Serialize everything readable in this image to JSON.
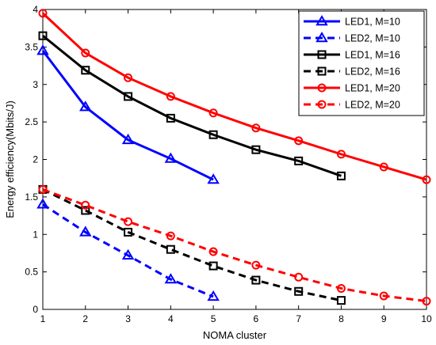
{
  "chart_data": {
    "type": "line",
    "xlabel": "NOMA cluster",
    "ylabel": "Energy efficiency(Mbits/J)",
    "xlim": [
      1,
      10
    ],
    "ylim": [
      0,
      4
    ],
    "xticks": [
      1,
      2,
      3,
      4,
      5,
      6,
      7,
      8,
      9,
      10
    ],
    "yticks": [
      0,
      0.5,
      1,
      1.5,
      2,
      2.5,
      3,
      3.5,
      4
    ],
    "ytick_labels": [
      "0",
      "0.5",
      "1",
      "1.5",
      "2",
      "2.5",
      "3",
      "3.5",
      "4"
    ],
    "grid": false,
    "legend_position": "top-right",
    "series": [
      {
        "name": "LED1, M=10",
        "color": "#0000ff",
        "style": "solid",
        "marker": "triangle",
        "x": [
          1,
          2,
          3,
          4,
          5
        ],
        "y": [
          3.45,
          2.7,
          2.26,
          2.01,
          1.73
        ]
      },
      {
        "name": "LED2, M=10",
        "color": "#0000ff",
        "style": "dashed",
        "marker": "triangle",
        "x": [
          1,
          2,
          3,
          4,
          5
        ],
        "y": [
          1.4,
          1.03,
          0.72,
          0.4,
          0.17
        ]
      },
      {
        "name": "LED1, M=16",
        "color": "#000000",
        "style": "solid",
        "marker": "square",
        "x": [
          1,
          2,
          3,
          4,
          5,
          6,
          7,
          8
        ],
        "y": [
          3.65,
          3.19,
          2.84,
          2.55,
          2.33,
          2.13,
          1.98,
          1.78
        ]
      },
      {
        "name": "LED2, M=16",
        "color": "#000000",
        "style": "dashed",
        "marker": "square",
        "x": [
          1,
          2,
          3,
          4,
          5,
          6,
          7,
          8
        ],
        "y": [
          1.6,
          1.32,
          1.03,
          0.8,
          0.58,
          0.39,
          0.24,
          0.12
        ]
      },
      {
        "name": "LED1, M=20",
        "color": "#ff0000",
        "style": "solid",
        "marker": "circle",
        "x": [
          1,
          2,
          3,
          4,
          5,
          6,
          7,
          8,
          9,
          10
        ],
        "y": [
          3.95,
          3.42,
          3.09,
          2.84,
          2.62,
          2.42,
          2.25,
          2.07,
          1.9,
          1.73
        ]
      },
      {
        "name": "LED2, M=20",
        "color": "#ff0000",
        "style": "dashed",
        "marker": "circle",
        "x": [
          1,
          2,
          3,
          4,
          5,
          6,
          7,
          8,
          9,
          10
        ],
        "y": [
          1.6,
          1.39,
          1.17,
          0.98,
          0.77,
          0.59,
          0.43,
          0.28,
          0.18,
          0.11
        ]
      }
    ]
  }
}
